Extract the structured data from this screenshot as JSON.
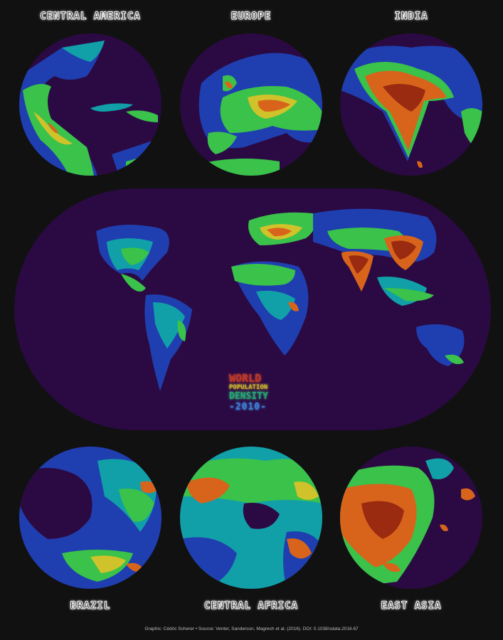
{
  "title": {
    "line1": "WORLD",
    "line2": "POPULATION",
    "line3": "DENSITY",
    "line4": "-2010-"
  },
  "regions": {
    "central_america": "CENTRAL AMERICA",
    "europe": "EUROPE",
    "india": "INDIA",
    "brazil": "BRAZIL",
    "central_africa": "CENTRAL AFRICA",
    "east_asia": "EAST ASIA"
  },
  "credits": "Graphic: Cédric Scherer  •  Source: Venter, Sanderson, Magrech et al. (2016). DOI: 0.1038/sdata.2016.67",
  "colors": {
    "background": "#111111",
    "ocean": "#2b0a43",
    "low": "#1f3fb0",
    "mid_low": "#12a0a8",
    "mid": "#3ac24a",
    "mid_high": "#d0c22a",
    "high": "#d8641c",
    "very_high": "#9a2a10"
  }
}
